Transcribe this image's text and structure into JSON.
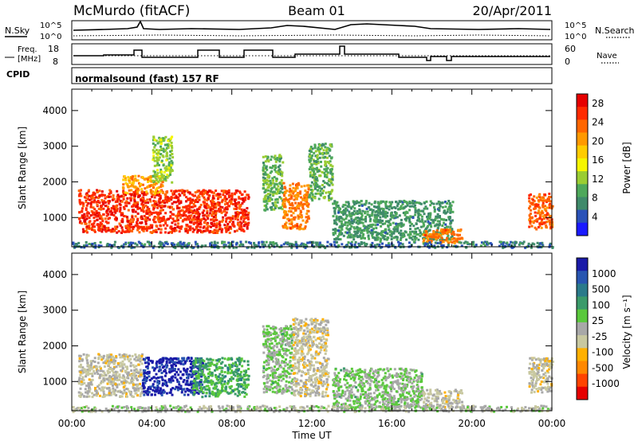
{
  "header": {
    "station": "McMurdo (fitACF)",
    "beam": "Beam 01",
    "date": "20/Apr/2011"
  },
  "top_panel": {
    "left_label": "N.Sky",
    "right_label": "N.Search",
    "tick_high": "10^5",
    "tick_low": "10^0",
    "freq_label_1": "Freq.",
    "freq_label_2": "[MHz]",
    "freq_ticks": [
      "18",
      "8"
    ],
    "nave_label": "Nave",
    "nave_ticks": [
      "60",
      "0"
    ],
    "cpid_label": "CPID",
    "cpid_value": "normalsound (fast) 157 RF"
  },
  "colors": {
    "power": [
      "#1a1aff",
      "#2a52b8",
      "#3f8a6a",
      "#4ea85a",
      "#9acd32",
      "#f5f500",
      "#ffcc00",
      "#ff9900",
      "#ff6600",
      "#ff2a00",
      "#e60000"
    ],
    "velocity": [
      "#e60000",
      "#ff4400",
      "#ff8800",
      "#ffb000",
      "#c8c8a0",
      "#a8a8a8",
      "#5ac83c",
      "#3a9a6a",
      "#2a7a8a",
      "#2855b0",
      "#1a1aa8"
    ]
  },
  "chart_data": [
    {
      "type": "heatmap",
      "title": "",
      "xlabel": "Time UT",
      "ylabel": "Slant Range [km]",
      "xlim": [
        "00:00",
        "24:00"
      ],
      "ylim": [
        180,
        4600
      ],
      "x_ticks": [
        "00:00",
        "04:00",
        "08:00",
        "12:00",
        "16:00",
        "20:00",
        "00:00"
      ],
      "y_ticks": [
        "1000",
        "2000",
        "3000",
        "4000"
      ],
      "colorbar_label": "Power [dB]",
      "colorbar_ticks": [
        "4",
        "8",
        "12",
        "16",
        "20",
        "24",
        "28"
      ],
      "colorbar_range": [
        0,
        30
      ],
      "regions": [
        {
          "x": [
            0.3,
            8.8
          ],
          "y": [
            600,
            1800
          ],
          "value": 26
        },
        {
          "x": [
            2.5,
            4.5
          ],
          "y": [
            1700,
            2200
          ],
          "value": 20
        },
        {
          "x": [
            4.0,
            5.0
          ],
          "y": [
            2000,
            3300
          ],
          "value": 12
        },
        {
          "x": [
            9.5,
            10.5
          ],
          "y": [
            1200,
            2800
          ],
          "value": 10
        },
        {
          "x": [
            10.5,
            11.8
          ],
          "y": [
            700,
            2000
          ],
          "value": 22
        },
        {
          "x": [
            11.8,
            13.0
          ],
          "y": [
            1500,
            3100
          ],
          "value": 10
        },
        {
          "x": [
            13.0,
            19.0
          ],
          "y": [
            400,
            1500
          ],
          "value": 8
        },
        {
          "x": [
            17.5,
            19.5
          ],
          "y": [
            300,
            700
          ],
          "value": 22
        },
        {
          "x": [
            0.0,
            24.0
          ],
          "y": [
            180,
            350
          ],
          "value": 6
        },
        {
          "x": [
            22.8,
            24.0
          ],
          "y": [
            700,
            1700
          ],
          "value": 24
        }
      ]
    },
    {
      "type": "heatmap",
      "title": "",
      "xlabel": "Time UT",
      "ylabel": "Slant Range [km]",
      "xlim": [
        "00:00",
        "24:00"
      ],
      "ylim": [
        180,
        4600
      ],
      "x_ticks": [
        "00:00",
        "04:00",
        "08:00",
        "12:00",
        "16:00",
        "20:00",
        "00:00"
      ],
      "y_ticks": [
        "1000",
        "2000",
        "3000",
        "4000"
      ],
      "colorbar_label": "Velocity [m s⁻¹]",
      "colorbar_ticks": [
        "1000",
        "500",
        "100",
        "25",
        "-25",
        "-100",
        "-500",
        "-1000"
      ],
      "colorbar_range": [
        -1000,
        1000
      ],
      "regions": [
        {
          "x": [
            0.3,
            3.5
          ],
          "y": [
            600,
            1800
          ],
          "value": -120
        },
        {
          "x": [
            3.5,
            6.5
          ],
          "y": [
            650,
            1700
          ],
          "value": 900
        },
        {
          "x": [
            6.0,
            8.8
          ],
          "y": [
            600,
            1700
          ],
          "value": 300
        },
        {
          "x": [
            9.5,
            11.0
          ],
          "y": [
            700,
            2600
          ],
          "value": 100
        },
        {
          "x": [
            11.0,
            12.8
          ],
          "y": [
            600,
            2800
          ],
          "value": -150
        },
        {
          "x": [
            13.0,
            17.5
          ],
          "y": [
            300,
            1400
          ],
          "value": 100
        },
        {
          "x": [
            17.5,
            19.5
          ],
          "y": [
            300,
            800
          ],
          "value": -100
        },
        {
          "x": [
            0.0,
            24.0
          ],
          "y": [
            180,
            350
          ],
          "value": 0
        },
        {
          "x": [
            22.8,
            24.0
          ],
          "y": [
            700,
            1700
          ],
          "value": -150
        }
      ]
    }
  ]
}
